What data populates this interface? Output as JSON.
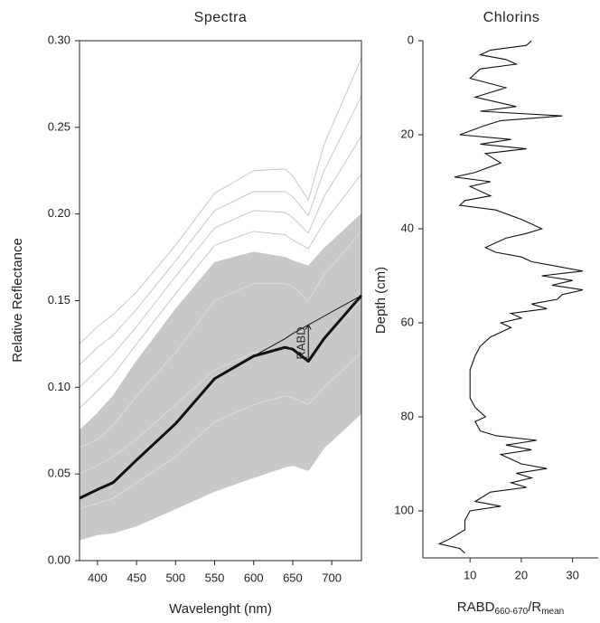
{
  "chart_data": [
    {
      "type": "line",
      "title": "Spectra",
      "xlabel": "Wavelenght (nm)",
      "ylabel": "Relative Reflectance",
      "x": [
        377,
        400,
        420,
        450,
        500,
        550,
        600,
        640,
        650,
        670,
        690,
        738
      ],
      "xlim": [
        377,
        738
      ],
      "xticks": [
        400,
        450,
        500,
        550,
        600,
        650,
        700
      ],
      "ylim": [
        0,
        0.3
      ],
      "yticks": [
        {
          "value": 0,
          "label": "0.00"
        },
        {
          "value": 0.05,
          "label": "0.05"
        },
        {
          "value": 0.1,
          "label": "0.10"
        },
        {
          "value": 0.15,
          "label": "0.15"
        },
        {
          "value": 0.2,
          "label": "0.20"
        },
        {
          "value": 0.25,
          "label": "0.25"
        },
        {
          "value": 0.3,
          "label": "0.30"
        }
      ],
      "band": {
        "color": "#c8c8c8",
        "lower": [
          0.012,
          0.015,
          0.016,
          0.02,
          0.03,
          0.04,
          0.048,
          0.054,
          0.055,
          0.052,
          0.065,
          0.085
        ],
        "upper": [
          0.075,
          0.085,
          0.095,
          0.115,
          0.145,
          0.172,
          0.178,
          0.175,
          0.173,
          0.17,
          0.18,
          0.2
        ]
      },
      "series": [
        {
          "color": "#dedede",
          "line_width": 0.8,
          "values": [
            0.03,
            0.033,
            0.036,
            0.045,
            0.06,
            0.08,
            0.09,
            0.095,
            0.094,
            0.09,
            0.1,
            0.12
          ]
        },
        {
          "color": "#dedede",
          "line_width": 0.8,
          "values": [
            0.05,
            0.055,
            0.06,
            0.07,
            0.09,
            0.11,
            0.12,
            0.122,
            0.121,
            0.116,
            0.128,
            0.15
          ]
        },
        {
          "color": "#dedede",
          "line_width": 0.8,
          "values": [
            0.065,
            0.07,
            0.078,
            0.095,
            0.12,
            0.15,
            0.16,
            0.16,
            0.158,
            0.15,
            0.165,
            0.19
          ]
        },
        {
          "color": "#c8c8c8",
          "line_width": 1,
          "values": [
            0.088,
            0.098,
            0.107,
            0.125,
            0.154,
            0.182,
            0.19,
            0.188,
            0.185,
            0.18,
            0.195,
            0.223
          ]
        },
        {
          "color": "#c8c8c8",
          "line_width": 1,
          "values": [
            0.1,
            0.11,
            0.119,
            0.135,
            0.164,
            0.192,
            0.202,
            0.201,
            0.198,
            0.189,
            0.21,
            0.245
          ]
        },
        {
          "color": "#c8c8c8",
          "line_width": 1,
          "values": [
            0.113,
            0.123,
            0.13,
            0.145,
            0.173,
            0.202,
            0.213,
            0.213,
            0.21,
            0.199,
            0.225,
            0.268
          ]
        },
        {
          "color": "#c8c8c8",
          "line_width": 1,
          "values": [
            0.125,
            0.135,
            0.142,
            0.155,
            0.182,
            0.212,
            0.225,
            0.226,
            0.222,
            0.208,
            0.24,
            0.29
          ]
        },
        {
          "color": "#111111",
          "line_width": 3,
          "values": [
            0.036,
            0.041,
            0.045,
            0.058,
            0.079,
            0.105,
            0.118,
            0.123,
            0.122,
            0.115,
            0.128,
            0.153
          ]
        },
        {
          "color": "#111111",
          "line_width": 1,
          "values": [
            null,
            null,
            null,
            null,
            null,
            null,
            0.118,
            0.128,
            0.131,
            0.136,
            0.141,
            0.153
          ]
        }
      ],
      "annotation": "RABD"
    },
    {
      "type": "profile",
      "title": "Chlorins",
      "xlabel_parts": [
        "RABD",
        "660-670",
        "/R",
        "mean"
      ],
      "ylabel": "Depth (cm)",
      "color": "#111111",
      "depth": [
        0,
        1,
        2,
        3,
        4,
        5,
        6,
        8,
        10,
        12,
        14,
        15,
        16,
        17,
        18,
        20,
        21,
        22,
        23,
        24,
        26,
        28,
        29,
        30,
        31,
        33,
        34,
        35,
        36,
        38,
        39,
        40,
        41,
        42,
        44,
        45,
        46,
        47,
        48,
        49,
        50,
        51,
        52,
        53,
        54,
        55,
        56,
        57,
        58,
        59,
        60,
        61,
        63,
        65,
        67,
        70,
        73,
        76,
        78,
        80,
        81,
        83,
        84,
        85,
        86,
        87,
        88,
        90,
        91,
        92,
        93,
        94,
        95,
        96,
        98,
        99,
        100,
        102,
        104,
        106,
        107,
        108,
        109
      ],
      "values": [
        22,
        21,
        14,
        12,
        17,
        19,
        12,
        10,
        17,
        11,
        19,
        12,
        28,
        16,
        13,
        8,
        18,
        12,
        21,
        13,
        16,
        11,
        7,
        14,
        10,
        14,
        9,
        8,
        15,
        20,
        22,
        24,
        21,
        17,
        13,
        15,
        20,
        22,
        27,
        32,
        24,
        30,
        26,
        32,
        28,
        27,
        22,
        25,
        18,
        20,
        16,
        18,
        14,
        12,
        11,
        10,
        10,
        10,
        11,
        13,
        11,
        12,
        15,
        23,
        17,
        22,
        16,
        20,
        25,
        19,
        22,
        18,
        21,
        14,
        11,
        16,
        10,
        9,
        9,
        6,
        4,
        8,
        9
      ],
      "xlim": [
        0.8,
        35
      ],
      "xticks": [
        10,
        20,
        30
      ],
      "ylim": [
        0,
        110
      ],
      "yticks": [
        0,
        20,
        40,
        60,
        80,
        100
      ],
      "y_inverted": true
    }
  ]
}
